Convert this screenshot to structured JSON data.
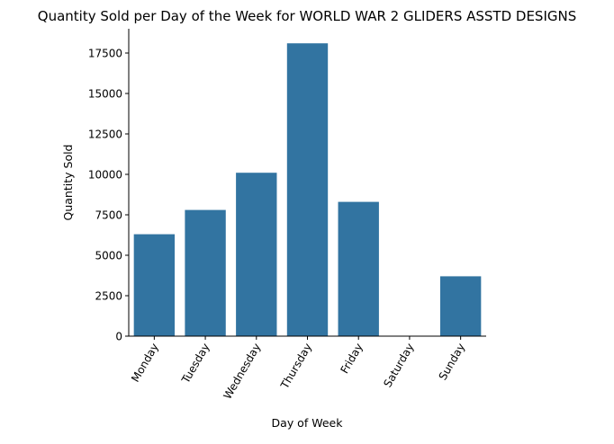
{
  "chart_data": {
    "type": "bar",
    "title": "Quantity Sold per Day of the Week for WORLD WAR 2 GLIDERS ASSTD DESIGNS",
    "xlabel": "Day of Week",
    "ylabel": "Quantity Sold",
    "categories": [
      "Monday",
      "Tuesday",
      "Wednesday",
      "Thursday",
      "Friday",
      "Saturday",
      "Sunday"
    ],
    "values": [
      6300,
      7800,
      10100,
      18100,
      8300,
      0,
      3700
    ],
    "ylim": [
      0,
      19000
    ],
    "yticks": [
      0,
      2500,
      5000,
      7500,
      10000,
      12500,
      15000,
      17500
    ],
    "ytick_labels": [
      "0",
      "2500",
      "5000",
      "7500",
      "10000",
      "12500",
      "15000",
      "17500"
    ],
    "grid": false,
    "bar_color": "#3274a1",
    "x_tick_rotation_deg": -60
  }
}
